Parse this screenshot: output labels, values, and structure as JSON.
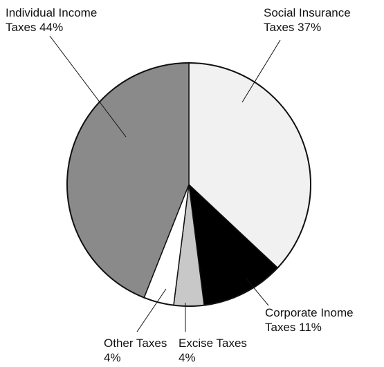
{
  "chart_data": {
    "type": "pie",
    "categories": [
      "Social Insurance Taxes",
      "Corporate Inome Taxes",
      "Excise Taxes",
      "Other Taxes",
      "Individual Income Taxes"
    ],
    "values": [
      37,
      11,
      4,
      4,
      44
    ],
    "value_labels": [
      "37%",
      "11%",
      "4%",
      "4%",
      "44%"
    ],
    "colors": [
      "#f1f1f1",
      "#000000",
      "#c8c8c8",
      "#ffffff",
      "#8a8a8a"
    ]
  }
}
